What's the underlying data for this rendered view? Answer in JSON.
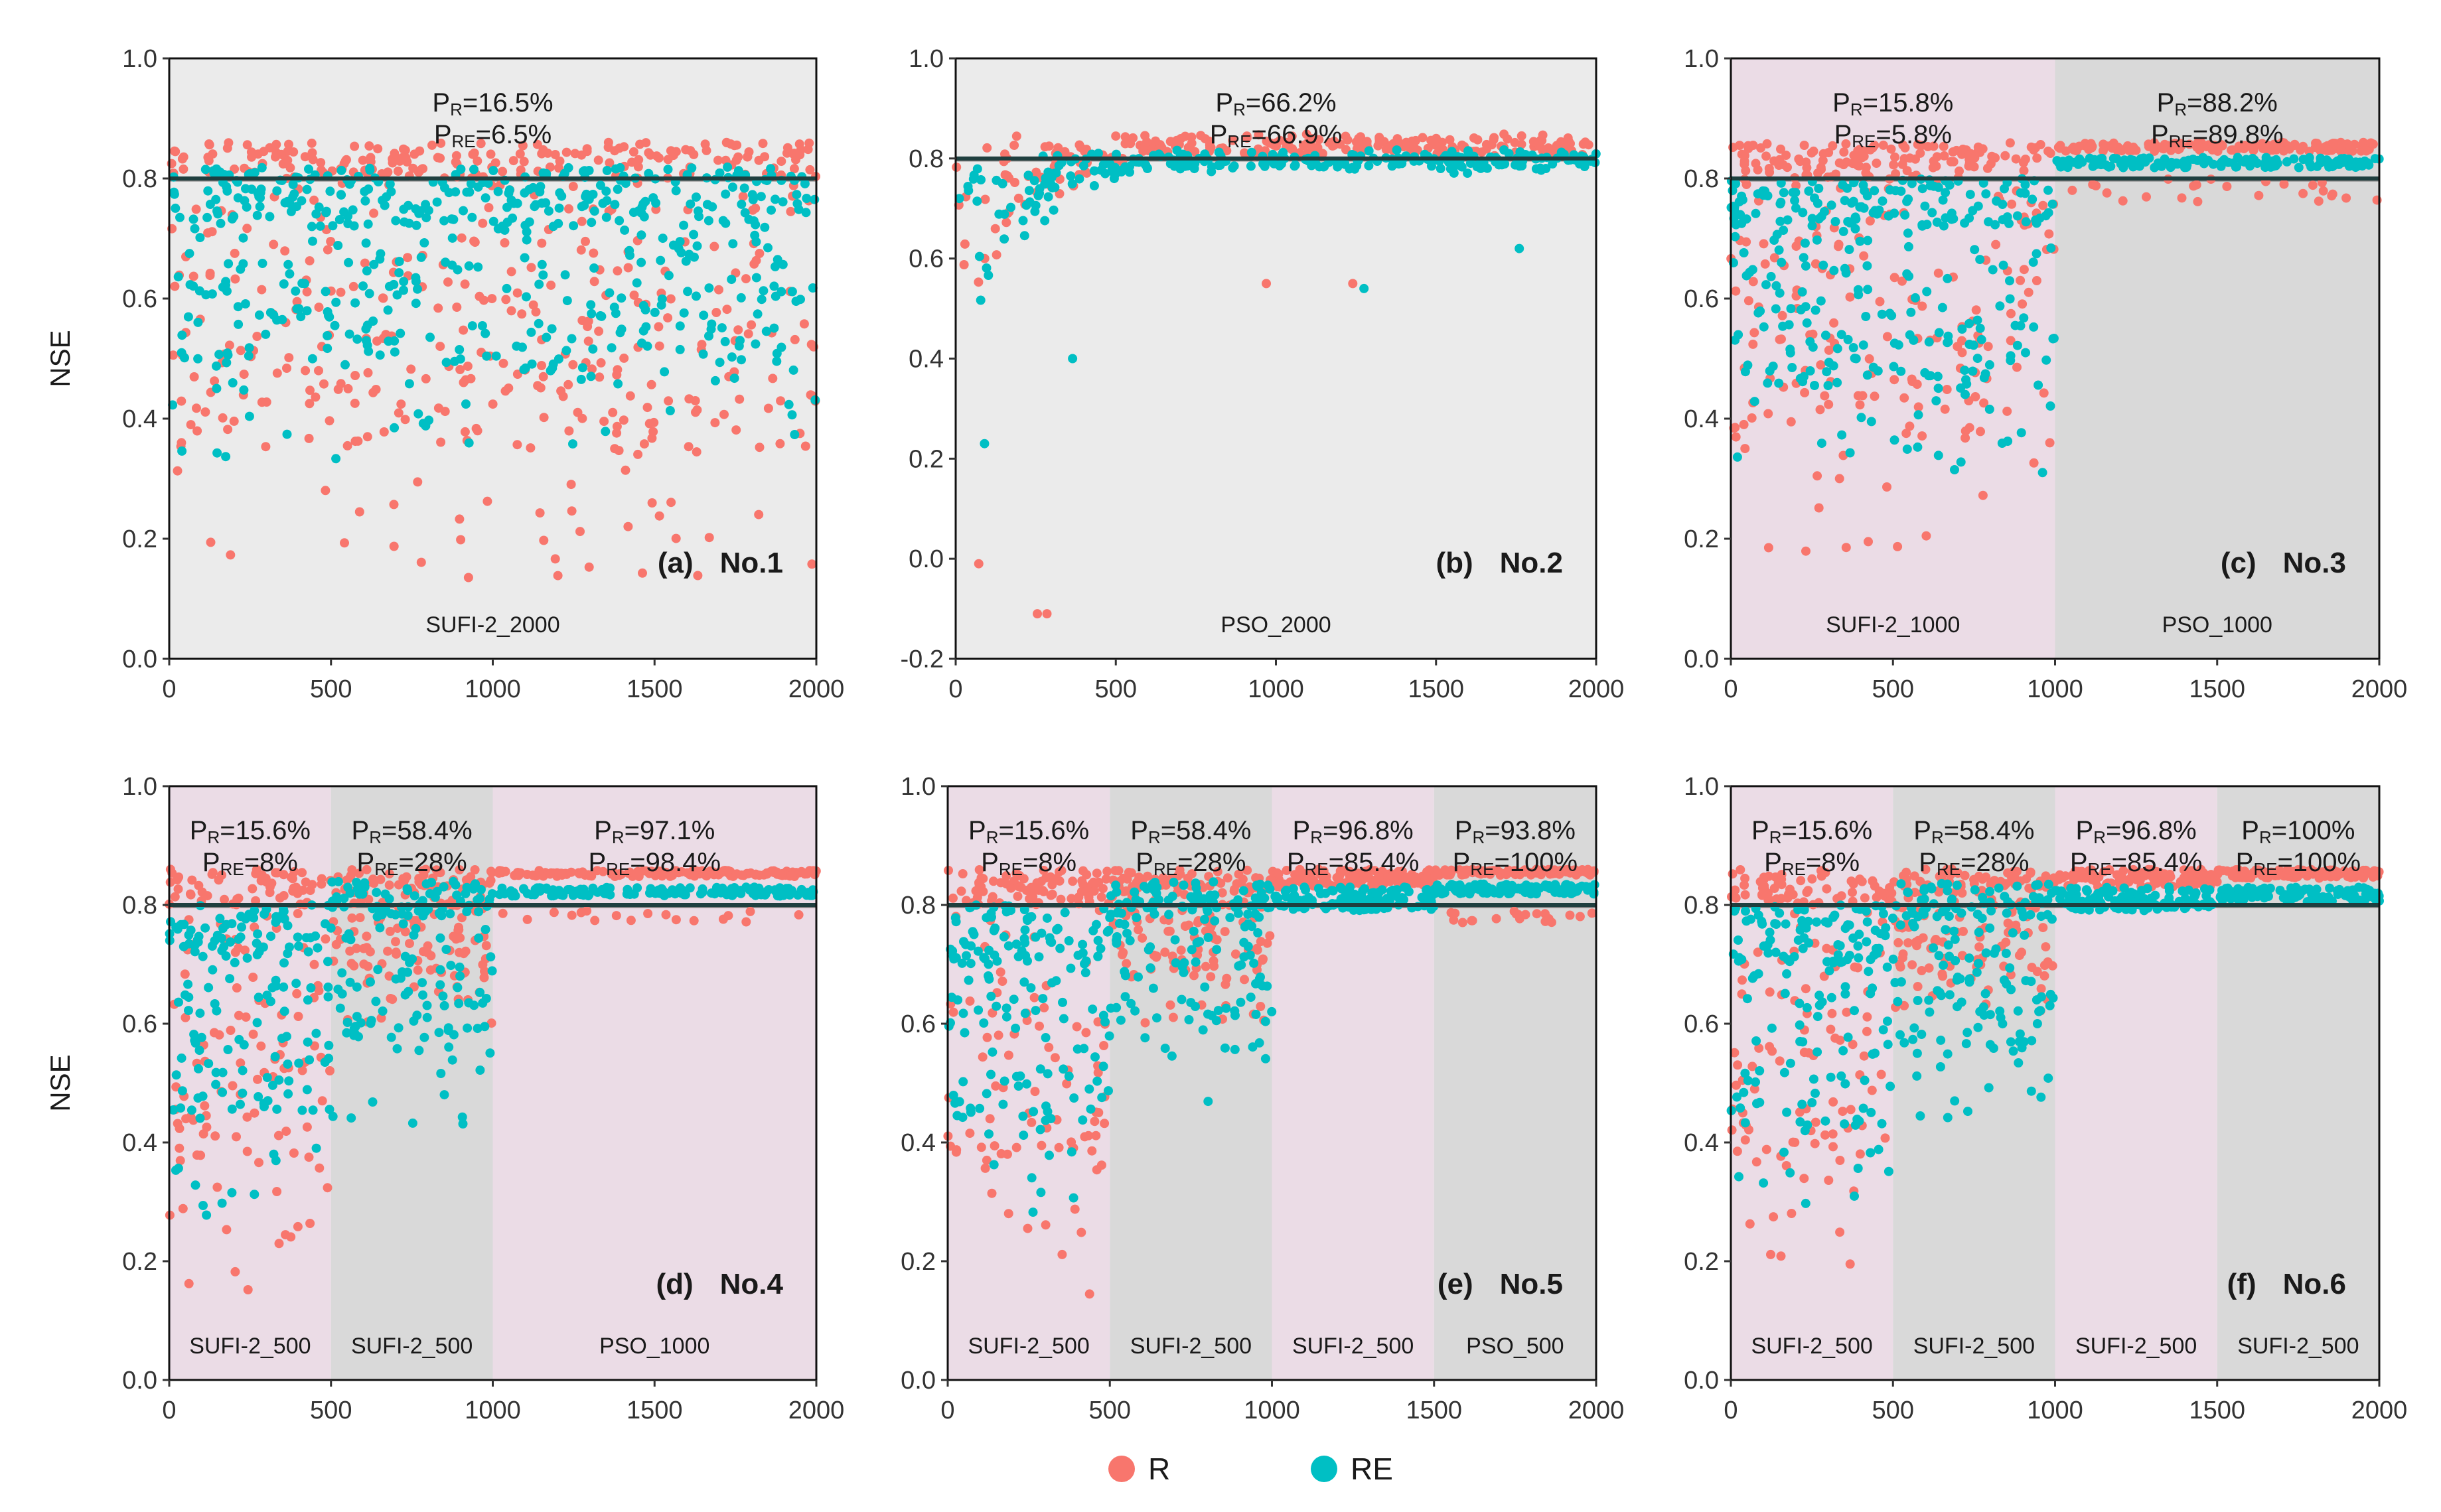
{
  "figure": {
    "ylabel": "NSE",
    "legend": [
      {
        "label": "R",
        "color": "#F8766D"
      },
      {
        "label": "RE",
        "color": "#00BFC4"
      }
    ],
    "colors": {
      "R": "#F8766D",
      "RE": "#00BFC4",
      "bg_gray": "#EBEBEB",
      "seg_pink": "#EBDCE6",
      "seg_gray": "#D9D9D9",
      "threshold_line": "#1F3F3F",
      "gray_line": "#777777"
    }
  },
  "chart_data": [
    {
      "type": "scatter",
      "panel_letter": "(a)",
      "panel_name": "No.1",
      "xlim": [
        0,
        2000
      ],
      "ylim": [
        0.0,
        1.0
      ],
      "x_ticks": [
        0,
        500,
        1000,
        1500,
        2000
      ],
      "y_ticks": [
        0.0,
        0.2,
        0.4,
        0.6,
        0.8,
        1.0
      ],
      "y_tick_labels": [
        "0.0",
        "0.2",
        "0.4",
        "0.6",
        "0.8",
        "1.0"
      ],
      "threshold": 0.8,
      "segments": [
        {
          "x0": 0,
          "x1": 2000,
          "label": "SUFI-2_2000",
          "shade": "gray",
          "pr": "16.5%",
          "pre": "6.5%"
        }
      ],
      "series": [
        {
          "name": "R",
          "segments": [
            {
              "x0": 0,
              "x1": 2000,
              "lo": 0.13,
              "hi": 0.86,
              "conc": 0.8,
              "n": 520
            }
          ]
        },
        {
          "name": "RE",
          "segments": [
            {
              "x0": 0,
              "x1": 2000,
              "lo": 0.33,
              "hi": 0.82,
              "conc": 0.72,
              "n": 520
            }
          ]
        }
      ]
    },
    {
      "type": "scatter",
      "panel_letter": "(b)",
      "panel_name": "No.2",
      "xlim": [
        0,
        2000
      ],
      "ylim": [
        -0.2,
        1.0
      ],
      "x_ticks": [
        0,
        500,
        1000,
        1500,
        2000
      ],
      "y_ticks": [
        -0.2,
        0.0,
        0.2,
        0.4,
        0.6,
        0.8,
        1.0
      ],
      "y_tick_labels": [
        "-0.2",
        "0.0",
        "0.2",
        "0.4",
        "0.6",
        "0.8",
        "1.0"
      ],
      "threshold": 0.8,
      "segments": [
        {
          "x0": 0,
          "x1": 2000,
          "label": "PSO_2000",
          "shade": "gray",
          "pr": "66.2%",
          "pre": "66.9%"
        }
      ],
      "series": [
        {
          "name": "R",
          "segments": [
            {
              "x0": 0,
              "x1": 2000,
              "lo": 0.82,
              "hi": 0.85,
              "n": 260,
              "pso": true
            }
          ]
        },
        {
          "name": "RE",
          "segments": [
            {
              "x0": 0,
              "x1": 2000,
              "lo": 0.79,
              "hi": 0.82,
              "n": 260,
              "pso": true
            }
          ]
        }
      ],
      "outliers": [
        {
          "s": "R",
          "x": 72,
          "y": -0.01
        },
        {
          "s": "R",
          "x": 255,
          "y": -0.11
        },
        {
          "s": "R",
          "x": 285,
          "y": -0.11
        },
        {
          "s": "R",
          "x": 970,
          "y": 0.55
        },
        {
          "s": "R",
          "x": 1240,
          "y": 0.55
        },
        {
          "s": "RE",
          "x": 1275,
          "y": 0.54
        },
        {
          "s": "RE",
          "x": 1760,
          "y": 0.62
        },
        {
          "s": "RE",
          "x": 90,
          "y": 0.23
        },
        {
          "s": "RE",
          "x": 365,
          "y": 0.4
        }
      ]
    },
    {
      "type": "scatter",
      "panel_letter": "(c)",
      "panel_name": "No.3",
      "xlim": [
        0,
        2000
      ],
      "ylim": [
        0.0,
        1.0
      ],
      "x_ticks": [
        0,
        500,
        1000,
        1500,
        2000
      ],
      "y_ticks": [
        0.0,
        0.2,
        0.4,
        0.6,
        0.8,
        1.0
      ],
      "y_tick_labels": [
        "0.0",
        "0.2",
        "0.4",
        "0.6",
        "0.8",
        "1.0"
      ],
      "threshold": 0.8,
      "segments": [
        {
          "x0": 0,
          "x1": 1000,
          "label": "SUFI-2_1000",
          "shade": "pink",
          "pr": "15.8%",
          "pre": "5.8%"
        },
        {
          "x0": 1000,
          "x1": 2000,
          "label": "PSO_1000",
          "shade": "gray",
          "pr": "88.2%",
          "pre": "89.8%"
        }
      ],
      "series": [
        {
          "name": "R",
          "segments": [
            {
              "x0": 0,
              "x1": 1000,
              "lo": 0.16,
              "hi": 0.86,
              "conc": 0.8,
              "n": 300
            },
            {
              "x0": 1000,
              "x1": 2000,
              "lo": 0.845,
              "hi": 0.86,
              "n": 150,
              "flat": true,
              "drops": 25,
              "dropLo": 0.76,
              "dropHi": 0.8
            }
          ]
        },
        {
          "name": "RE",
          "segments": [
            {
              "x0": 0,
              "x1": 1000,
              "lo": 0.3,
              "hi": 0.8,
              "conc": 0.72,
              "n": 300
            },
            {
              "x0": 1000,
              "x1": 2000,
              "lo": 0.818,
              "hi": 0.835,
              "n": 150,
              "flat": true
            }
          ]
        }
      ]
    },
    {
      "type": "scatter",
      "panel_letter": "(d)",
      "panel_name": "No.4",
      "xlim": [
        0,
        2000
      ],
      "ylim": [
        0.0,
        1.0
      ],
      "x_ticks": [
        0,
        500,
        1000,
        1500,
        2000
      ],
      "y_ticks": [
        0.0,
        0.2,
        0.4,
        0.6,
        0.8,
        1.0
      ],
      "y_tick_labels": [
        "0.0",
        "0.2",
        "0.4",
        "0.6",
        "0.8",
        "1.0"
      ],
      "threshold": 0.8,
      "segments": [
        {
          "x0": 0,
          "x1": 500,
          "label": "SUFI-2_500",
          "shade": "pink",
          "pr": "15.6%",
          "pre": "8%"
        },
        {
          "x0": 500,
          "x1": 1000,
          "label": "SUFI-2_500",
          "shade": "gray",
          "pr": "58.4%",
          "pre": "28%"
        },
        {
          "x0": 1000,
          "x1": 2000,
          "label": "PSO_1000",
          "shade": "pink",
          "pr": "97.1%",
          "pre": "98.4%"
        }
      ],
      "series": [
        {
          "name": "R",
          "segments": [
            {
              "x0": 0,
              "x1": 500,
              "lo": 0.14,
              "hi": 0.86,
              "conc": 0.8,
              "n": 160
            },
            {
              "x0": 500,
              "x1": 1000,
              "lo": 0.6,
              "hi": 0.86,
              "conc": 0.82,
              "n": 160
            },
            {
              "x0": 1000,
              "x1": 2000,
              "lo": 0.848,
              "hi": 0.858,
              "n": 150,
              "flat": true,
              "drops": 18,
              "dropLo": 0.77,
              "dropHi": 0.79
            }
          ]
        },
        {
          "name": "RE",
          "segments": [
            {
              "x0": 0,
              "x1": 500,
              "lo": 0.27,
              "hi": 0.8,
              "conc": 0.7,
              "n": 160
            },
            {
              "x0": 500,
              "x1": 1000,
              "lo": 0.43,
              "hi": 0.84,
              "conc": 0.78,
              "n": 160
            },
            {
              "x0": 1000,
              "x1": 2000,
              "lo": 0.815,
              "hi": 0.83,
              "n": 150,
              "flat": true
            }
          ]
        }
      ]
    },
    {
      "type": "scatter",
      "panel_letter": "(e)",
      "panel_name": "No.5",
      "xlim": [
        0,
        2000
      ],
      "ylim": [
        0.0,
        1.0
      ],
      "x_ticks": [
        0,
        500,
        1000,
        1500,
        2000
      ],
      "y_ticks": [
        0.0,
        0.2,
        0.4,
        0.6,
        0.8,
        1.0
      ],
      "y_tick_labels": [
        "0.0",
        "0.2",
        "0.4",
        "0.6",
        "0.8",
        "1.0"
      ],
      "threshold": 0.8,
      "segments": [
        {
          "x0": 0,
          "x1": 500,
          "label": "SUFI-2_500",
          "shade": "pink",
          "pr": "15.6%",
          "pre": "8%"
        },
        {
          "x0": 500,
          "x1": 1000,
          "label": "SUFI-2_500",
          "shade": "gray",
          "pr": "58.4%",
          "pre": "28%"
        },
        {
          "x0": 1000,
          "x1": 1500,
          "label": "SUFI-2_500",
          "shade": "pink",
          "pr": "96.8%",
          "pre": "85.4%"
        },
        {
          "x0": 1500,
          "x1": 2000,
          "label": "PSO_500",
          "shade": "gray",
          "pr": "93.8%",
          "pre": "100%"
        }
      ],
      "series": [
        {
          "name": "R",
          "segments": [
            {
              "x0": 0,
              "x1": 500,
              "lo": 0.14,
              "hi": 0.86,
              "conc": 0.8,
              "n": 160
            },
            {
              "x0": 500,
              "x1": 1000,
              "lo": 0.6,
              "hi": 0.86,
              "conc": 0.82,
              "n": 160
            },
            {
              "x0": 1000,
              "x1": 1500,
              "lo": 0.83,
              "hi": 0.86,
              "n": 120,
              "flat": true
            },
            {
              "x0": 1500,
              "x1": 2000,
              "lo": 0.85,
              "hi": 0.86,
              "n": 110,
              "flat": true,
              "drops": 20,
              "dropLo": 0.77,
              "dropHi": 0.79
            }
          ]
        },
        {
          "name": "RE",
          "segments": [
            {
              "x0": 0,
              "x1": 500,
              "lo": 0.27,
              "hi": 0.8,
              "conc": 0.7,
              "n": 160
            },
            {
              "x0": 500,
              "x1": 1000,
              "lo": 0.43,
              "hi": 0.84,
              "conc": 0.78,
              "n": 160
            },
            {
              "x0": 1000,
              "x1": 1500,
              "lo": 0.79,
              "hi": 0.83,
              "n": 120,
              "flat": true
            },
            {
              "x0": 1500,
              "x1": 2000,
              "lo": 0.818,
              "hi": 0.835,
              "n": 110,
              "flat": true
            }
          ]
        }
      ]
    },
    {
      "type": "scatter",
      "panel_letter": "(f)",
      "panel_name": "No.6",
      "xlim": [
        0,
        2000
      ],
      "ylim": [
        0.0,
        1.0
      ],
      "x_ticks": [
        0,
        500,
        1000,
        1500,
        2000
      ],
      "y_ticks": [
        0.0,
        0.2,
        0.4,
        0.6,
        0.8,
        1.0
      ],
      "y_tick_labels": [
        "0.0",
        "0.2",
        "0.4",
        "0.6",
        "0.8",
        "1.0"
      ],
      "threshold": 0.8,
      "segments": [
        {
          "x0": 0,
          "x1": 500,
          "label": "SUFI-2_500",
          "shade": "pink",
          "pr": "15.6%",
          "pre": "8%"
        },
        {
          "x0": 500,
          "x1": 1000,
          "label": "SUFI-2_500",
          "shade": "gray",
          "pr": "58.4%",
          "pre": "28%"
        },
        {
          "x0": 1000,
          "x1": 1500,
          "label": "SUFI-2_500",
          "shade": "pink",
          "pr": "96.8%",
          "pre": "85.4%"
        },
        {
          "x0": 1500,
          "x1": 2000,
          "label": "SUFI-2_500",
          "shade": "gray",
          "pr": "100%",
          "pre": "100%"
        }
      ],
      "series": [
        {
          "name": "R",
          "segments": [
            {
              "x0": 0,
              "x1": 500,
              "lo": 0.14,
              "hi": 0.86,
              "conc": 0.8,
              "n": 160
            },
            {
              "x0": 500,
              "x1": 1000,
              "lo": 0.6,
              "hi": 0.86,
              "conc": 0.82,
              "n": 160
            },
            {
              "x0": 1000,
              "x1": 1500,
              "lo": 0.83,
              "hi": 0.86,
              "n": 120,
              "flat": true
            },
            {
              "x0": 1500,
              "x1": 2000,
              "lo": 0.845,
              "hi": 0.86,
              "n": 110,
              "flat": true
            }
          ]
        },
        {
          "name": "RE",
          "segments": [
            {
              "x0": 0,
              "x1": 500,
              "lo": 0.27,
              "hi": 0.8,
              "conc": 0.7,
              "n": 160
            },
            {
              "x0": 500,
              "x1": 1000,
              "lo": 0.43,
              "hi": 0.84,
              "conc": 0.78,
              "n": 160
            },
            {
              "x0": 1000,
              "x1": 1500,
              "lo": 0.79,
              "hi": 0.83,
              "n": 120,
              "flat": true
            },
            {
              "x0": 1500,
              "x1": 2000,
              "lo": 0.805,
              "hi": 0.83,
              "n": 110,
              "flat": true
            }
          ]
        }
      ]
    }
  ]
}
